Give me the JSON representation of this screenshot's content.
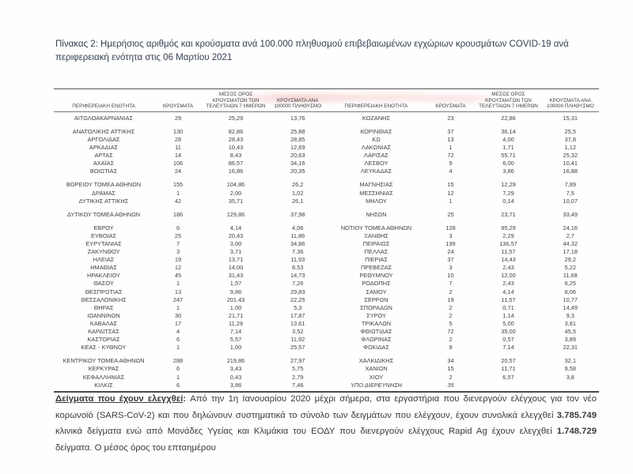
{
  "title": {
    "text": "Πίνακας 2:  Ημερήσιος αριθμός και κρούσματα ανά 100.000 πληθυσμού επιβεβαιωμένων εγχώριων κρουσμάτων COVID-19 ανά περιφερειακή ενότητα στις 06 Μαρτίου 2021"
  },
  "colors": {
    "title": "#333f50",
    "body_text": "#3f3f3f",
    "rule": "#4a4a4a"
  },
  "table": {
    "column_headers": {
      "region": "ΠΕΡΙΦΕΡΕΙΑΚΗ ΕΝΟΤΗΤΑ",
      "cases": "ΚΡΟΥΣΜΑΤΑ",
      "avg7": "ΜΕΣΟΣ ΟΡΟΣ ΚΡΟΥΣΜΑΤΩΝ ΤΩΝ ΤΕΛΕΥΤΑΙΩΝ 7 ΗΜΕΡΩΝ",
      "per100k": "ΚΡΟΥΣΜΑΤΑ ΑΝΑ 100000 ΠΛΗΘΥΣΜΟ"
    },
    "left_groups": [
      [
        {
          "region": "ΑΙΤΩΛΟΑΚΑΡΝΑΝΙΑΣ",
          "cases": "29",
          "avg7": "25,29",
          "per100k": "13,76"
        }
      ],
      [
        {
          "region": "ΑΝΑΤΟΛΙΚΗΣ ΑΤΤΙΚΗΣ",
          "cases": "130",
          "avg7": "82,86",
          "per100k": "25,88"
        },
        {
          "region": "ΑΡΓΟΛΙΔΑΣ",
          "cases": "28",
          "avg7": "28,43",
          "per100k": "28,85"
        },
        {
          "region": "ΑΡΚΑΔΙΑΣ",
          "cases": "11",
          "avg7": "10,43",
          "per100k": "12,69"
        },
        {
          "region": "ΑΡΤΑΣ",
          "cases": "14",
          "avg7": "8,43",
          "per100k": "20,63"
        },
        {
          "region": "ΑΧΑΪΑΣ",
          "cases": "106",
          "avg7": "86,57",
          "per100k": "34,16"
        },
        {
          "region": "ΒΟΙΩΤΙΑΣ",
          "cases": "24",
          "avg7": "16,86",
          "per100k": "20,35"
        }
      ],
      [
        {
          "region": "ΒΟΡΕΙΟΥ ΤΟΜΕΑ ΑΘΗΝΩΝ",
          "cases": "155",
          "avg7": "104,86",
          "per100k": "26,2"
        },
        {
          "region": "ΔΡΑΜΑΣ",
          "cases": "1",
          "avg7": "2,00",
          "per100k": "1,02"
        },
        {
          "region": "ΔΥΤΙΚΗΣ ΑΤΤΙΚΗΣ",
          "cases": "42",
          "avg7": "35,71",
          "per100k": "26,1"
        }
      ],
      [
        {
          "region": "ΔΥΤΙΚΟΥ ΤΟΜΕΑ ΑΘΗΝΩΝ",
          "cases": "186",
          "avg7": "129,86",
          "per100k": "37,98"
        }
      ],
      [
        {
          "region": "ΕΒΡΟΥ",
          "cases": "6",
          "avg7": "4,14",
          "per100k": "4,06"
        },
        {
          "region": "ΕΥΒΟΙΑΣ",
          "cases": "25",
          "avg7": "20,43",
          "per100k": "11,86"
        },
        {
          "region": "ΕΥΡΥΤΑΝΙΑΣ",
          "cases": "7",
          "avg7": "3,00",
          "per100k": "34,86"
        },
        {
          "region": "ΖΑΚΥΝΘΟΥ",
          "cases": "3",
          "avg7": "3,71",
          "per100k": "7,36"
        },
        {
          "region": "ΗΛΕΙΑΣ",
          "cases": "19",
          "avg7": "13,71",
          "per100k": "11,93"
        },
        {
          "region": "ΗΜΑΘΙΑΣ",
          "cases": "12",
          "avg7": "14,00",
          "per100k": "8,53"
        },
        {
          "region": "ΗΡΑΚΛΕΙΟΥ",
          "cases": "45",
          "avg7": "31,43",
          "per100k": "14,73"
        },
        {
          "region": "ΘΑΣΟΥ",
          "cases": "1",
          "avg7": "1,57",
          "per100k": "7,26"
        },
        {
          "region": "ΘΕΣΠΡΩΤΙΑΣ",
          "cases": "13",
          "avg7": "9,86",
          "per100k": "29,83"
        },
        {
          "region": "ΘΕΣΣΑΛΟΝΙΚΗΣ",
          "cases": "247",
          "avg7": "201,43",
          "per100k": "22,25"
        },
        {
          "region": "ΘΗΡΑΣ",
          "cases": "1",
          "avg7": "1,00",
          "per100k": "5,3"
        },
        {
          "region": "ΙΩΑΝΝΙΝΩΝ",
          "cases": "30",
          "avg7": "21,71",
          "per100k": "17,87"
        },
        {
          "region": "ΚΑΒΑΛΑΣ",
          "cases": "17",
          "avg7": "11,29",
          "per100k": "13,61"
        },
        {
          "region": "ΚΑΡΔΙΤΣΑΣ",
          "cases": "4",
          "avg7": "7,14",
          "per100k": "3,52"
        },
        {
          "region": "ΚΑΣΤΟΡΙΑΣ",
          "cases": "6",
          "avg7": "5,57",
          "per100k": "11,92"
        },
        {
          "region": "ΚΕΑΣ - ΚΥΘΝΟΥ",
          "cases": "1",
          "avg7": "1,00",
          "per100k": "25,57"
        }
      ],
      [
        {
          "region": "ΚΕΝΤΡΙΚΟΥ ΤΟΜΕΑ ΑΘΗΝΩΝ",
          "cases": "288",
          "avg7": "219,86",
          "per100k": "27,97"
        },
        {
          "region": "ΚΕΡΚΥΡΑΣ",
          "cases": "6",
          "avg7": "3,43",
          "per100k": "5,75"
        },
        {
          "region": "ΚΕΦΑΛΛΗΝΙΑΣ",
          "cases": "1",
          "avg7": "0,43",
          "per100k": "2,79"
        },
        {
          "region": "ΚΙΛΚΙΣ",
          "cases": "6",
          "avg7": "3,86",
          "per100k": "7,46"
        }
      ]
    ],
    "right_groups": [
      [
        {
          "region": "ΚΟΖΑΝΗΣ",
          "cases": "23",
          "avg7": "22,86",
          "per100k": "15,31"
        }
      ],
      [
        {
          "region": "ΚΟΡΙΝΘΙΑΣ",
          "cases": "37",
          "avg7": "36,14",
          "per100k": "25,5"
        },
        {
          "region": "ΚΩ",
          "cases": "13",
          "avg7": "4,00",
          "per100k": "37,8"
        },
        {
          "region": "ΛΑΚΩΝΙΑΣ",
          "cases": "1",
          "avg7": "1,71",
          "per100k": "1,12"
        },
        {
          "region": "ΛΑΡΙΣΑΣ",
          "cases": "72",
          "avg7": "55,71",
          "per100k": "25,32"
        },
        {
          "region": "ΛΕΣΒΟΥ",
          "cases": "9",
          "avg7": "6,00",
          "per100k": "10,41"
        },
        {
          "region": "ΛΕΥΚΑΔΑΣ",
          "cases": "4",
          "avg7": "3,86",
          "per100k": "16,88"
        }
      ],
      [
        {
          "region": "ΜΑΓΝΗΣΙΑΣ",
          "cases": "15",
          "avg7": "12,29",
          "per100k": "7,89"
        },
        {
          "region": "ΜΕΣΣΗΝΙΑΣ",
          "cases": "12",
          "avg7": "7,29",
          "per100k": "7,5"
        },
        {
          "region": "ΜΗΛΟΥ",
          "cases": "1",
          "avg7": "0,14",
          "per100k": "10,07"
        }
      ],
      [
        {
          "region": "ΝΗΣΩΝ",
          "cases": "25",
          "avg7": "23,71",
          "per100k": "33,49"
        }
      ],
      [
        {
          "region": "ΝΟΤΙΟΥ ΤΟΜΕΑ ΑΘΗΝΩΝ",
          "cases": "128",
          "avg7": "95,29",
          "per100k": "24,16"
        },
        {
          "region": "ΞΑΝΘΗΣ",
          "cases": "3",
          "avg7": "2,29",
          "per100k": "2,7"
        },
        {
          "region": "ΠΕΙΡΑΙΩΣ",
          "cases": "199",
          "avg7": "136,57",
          "per100k": "44,32"
        },
        {
          "region": "ΠΕΛΛΑΣ",
          "cases": "24",
          "avg7": "11,57",
          "per100k": "17,18"
        },
        {
          "region": "ΠΙΕΡΙΑΣ",
          "cases": "37",
          "avg7": "14,43",
          "per100k": "29,2"
        },
        {
          "region": "ΠΡΕΒΕΖΑΣ",
          "cases": "3",
          "avg7": "2,43",
          "per100k": "5,22"
        },
        {
          "region": "ΡΕΘΥΜΝΟΥ",
          "cases": "10",
          "avg7": "12,00",
          "per100k": "11,68"
        },
        {
          "region": "ΡΟΔΟΠΗΣ",
          "cases": "7",
          "avg7": "2,43",
          "per100k": "6,25"
        },
        {
          "region": "ΣΑΜΟΥ",
          "cases": "2",
          "avg7": "4,14",
          "per100k": "6,06"
        },
        {
          "region": "ΣΕΡΡΩΝ",
          "cases": "19",
          "avg7": "11,57",
          "per100k": "10,77"
        },
        {
          "region": "ΣΠΟΡΑΔΩΝ",
          "cases": "2",
          "avg7": "0,71",
          "per100k": "14,49"
        },
        {
          "region": "ΣΥΡΟΥ",
          "cases": "2",
          "avg7": "1,14",
          "per100k": "9,3"
        },
        {
          "region": "ΤΡΙΚΑΛΩΝ",
          "cases": "5",
          "avg7": "5,00",
          "per100k": "3,81"
        },
        {
          "region": "ΦΘΙΩΤΙΔΑΣ",
          "cases": "72",
          "avg7": "35,00",
          "per100k": "45,5"
        },
        {
          "region": "ΦΛΩΡΙΝΑΣ",
          "cases": "2",
          "avg7": "0,57",
          "per100k": "3,89"
        },
        {
          "region": "ΦΩΚΙΔΑΣ",
          "cases": "9",
          "avg7": "7,14",
          "per100k": "22,31"
        }
      ],
      [
        {
          "region": "ΧΑΛΚΙΔΙΚΗΣ",
          "cases": "34",
          "avg7": "20,57",
          "per100k": "32,1"
        },
        {
          "region": "ΧΑΝΙΩΝ",
          "cases": "15",
          "avg7": "11,71",
          "per100k": "9,58"
        },
        {
          "region": "ΧΙΟΥ",
          "cases": "2",
          "avg7": "6,57",
          "per100k": "3,8"
        },
        {
          "region": "ΥΠΟ ΔΙΕΡΕΥΝΗΣΗ",
          "cases": "35",
          "avg7": "",
          "per100k": "",
          "italic": true
        }
      ]
    ]
  },
  "footnote": {
    "segments": [
      {
        "text": "Δείγματα που έχουν ελεγχθεί",
        "style": "bold-underline"
      },
      {
        "text": ": ",
        "style": "bold"
      },
      {
        "text": "Από την 1η Ιανουαρίου 2020 μέχρι σήμερα, στα εργαστήρια που διενεργούν ελέγχους για τον νέο κορωνοϊό (SARS-CoV-2) και που δηλώνουν συστηματικά το σύνολο των δειγμάτων που ελέγχουν, έχουν συνολικά ελεγχθεί ",
        "style": "normal"
      },
      {
        "text": "3.785.749",
        "style": "bold"
      },
      {
        "text": " κλινικά δείγματα ενώ από Μονάδες Υγείας και Κλιμάκια του ΕΟΔΥ που διενεργούν ελέγχους Rapid Ag έχουν ελεγχθεί ",
        "style": "normal"
      },
      {
        "text": "1.748.729",
        "style": "bold"
      },
      {
        "text": " δείγματα. Ο μέσος όρος του επταημέρου",
        "style": "normal"
      }
    ]
  }
}
